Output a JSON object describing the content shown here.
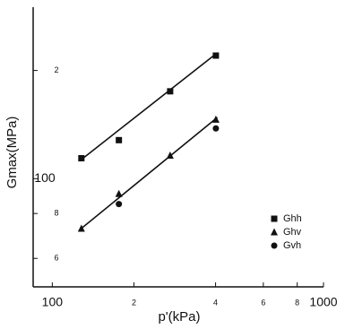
{
  "chart_data": {
    "type": "scatter",
    "x_label": "p'(kPa)",
    "y_label": "Gmax(MPa)",
    "x_log": true,
    "y_log": true,
    "xlim": [
      85,
      1000
    ],
    "ylim": [
      50,
      300
    ],
    "xticks": [
      100,
      {
        "value": 200,
        "label": "2"
      },
      {
        "value": 400,
        "label": "4"
      },
      {
        "value": 600,
        "label": "6"
      },
      {
        "value": 800,
        "label": "8"
      },
      1000
    ],
    "yticks": [
      {
        "value": 60,
        "label": "6"
      },
      {
        "value": 80,
        "label": "8"
      },
      100,
      {
        "value": 200,
        "label": "2"
      }
    ],
    "series": [
      {
        "name": "Ghh",
        "marker": "square",
        "color": "#111",
        "x": [
          128,
          176,
          272,
          401
        ],
        "values": [
          114,
          128,
          175,
          220
        ]
      },
      {
        "name": "Ghv",
        "marker": "triangle",
        "color": "#111",
        "x": [
          128,
          176,
          272,
          401
        ],
        "values": [
          72.6,
          90.7,
          116,
          146
        ]
      },
      {
        "name": "Gvh",
        "marker": "circle",
        "color": "#111",
        "x": [
          176,
          401
        ],
        "values": [
          85,
          138
        ]
      }
    ],
    "fit_lines": [
      {
        "x": [
          126,
          406
        ],
        "values": [
          112,
          224
        ]
      },
      {
        "x": [
          126,
          406
        ],
        "values": [
          72,
          148
        ]
      }
    ]
  }
}
